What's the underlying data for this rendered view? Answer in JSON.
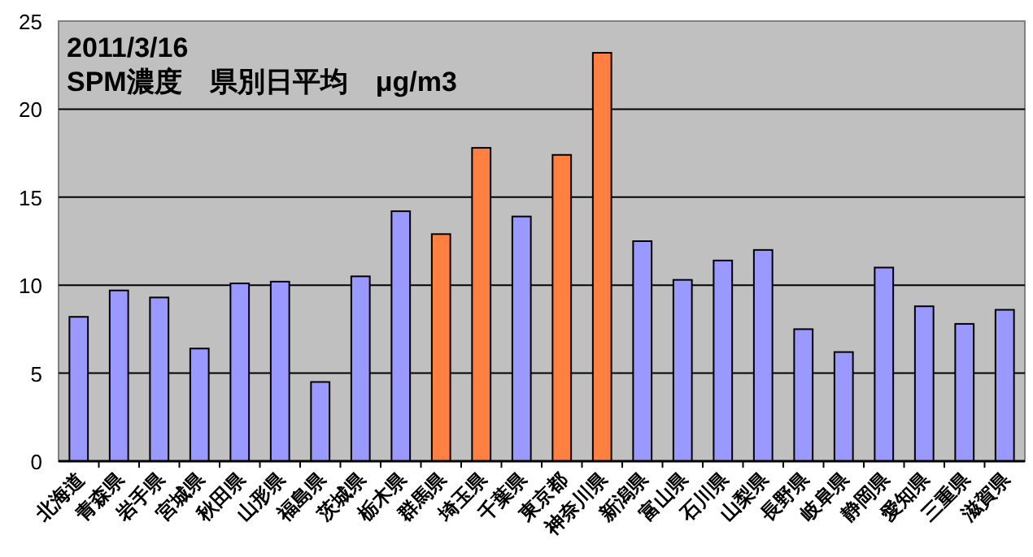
{
  "chart_data": {
    "type": "bar",
    "title": "2011/3/16",
    "subtitle": "SPM濃度　県別日平均　μg/m3",
    "categories": [
      "北海道",
      "青森県",
      "岩手県",
      "宮城県",
      "秋田県",
      "山形県",
      "福島県",
      "茨城県",
      "栃木県",
      "群馬県",
      "埼玉県",
      "千葉県",
      "東京都",
      "神奈川県",
      "新潟県",
      "富山県",
      "石川県",
      "山梨県",
      "長野県",
      "岐阜県",
      "静岡県",
      "愛知県",
      "三重県",
      "滋賀県"
    ],
    "values": [
      8.2,
      9.7,
      9.3,
      6.4,
      10.1,
      10.2,
      4.5,
      10.5,
      14.2,
      12.9,
      17.8,
      13.9,
      17.4,
      23.2,
      12.5,
      10.3,
      11.4,
      12.0,
      7.5,
      6.2,
      11.0,
      8.8,
      7.8,
      8.6
    ],
    "colors": [
      "#9999ff",
      "#9999ff",
      "#9999ff",
      "#9999ff",
      "#9999ff",
      "#9999ff",
      "#9999ff",
      "#9999ff",
      "#9999ff",
      "#ff8040",
      "#ff8040",
      "#9999ff",
      "#ff8040",
      "#ff8040",
      "#9999ff",
      "#9999ff",
      "#9999ff",
      "#9999ff",
      "#9999ff",
      "#9999ff",
      "#9999ff",
      "#9999ff",
      "#9999ff",
      "#9999ff"
    ],
    "ylim": [
      0,
      25
    ],
    "yticks": [
      0,
      5,
      10,
      15,
      20,
      25
    ],
    "grid": "y"
  }
}
